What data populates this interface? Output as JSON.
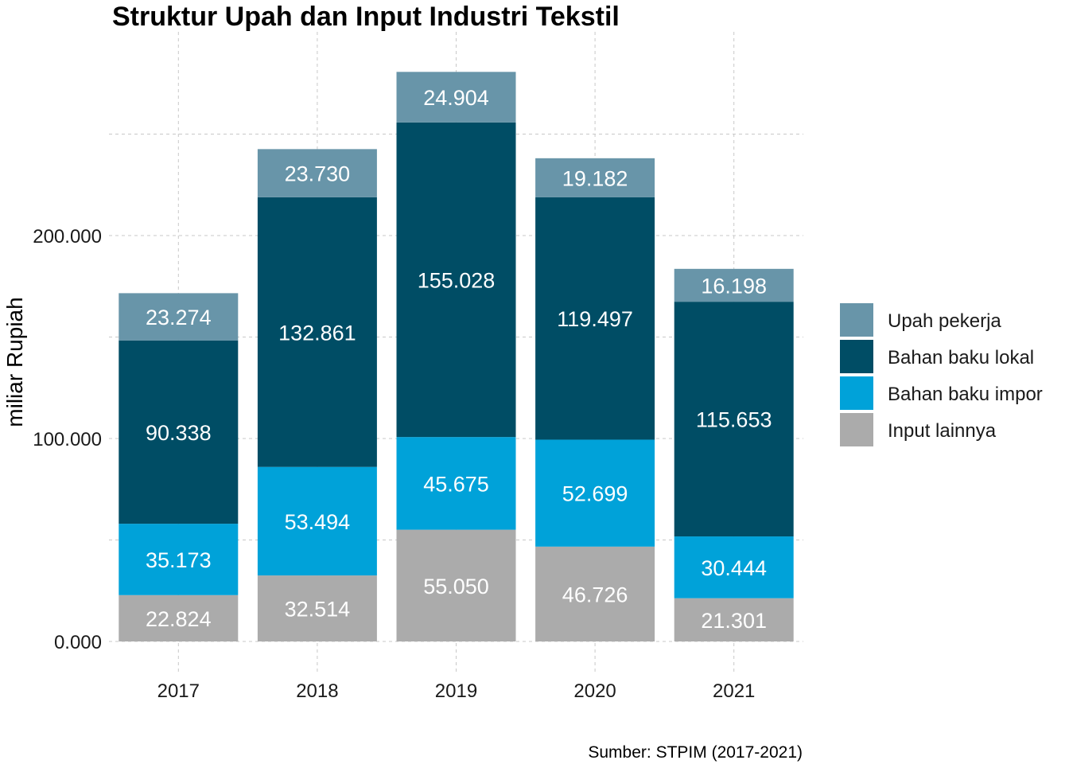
{
  "chart_data": {
    "type": "bar",
    "stacked": true,
    "title": "Struktur Upah dan Input Industri Tekstil",
    "xlabel": "",
    "ylabel": "miliar Rupiah",
    "caption": "Sumber: STPIM (2017-2021)",
    "categories": [
      "2017",
      "2018",
      "2019",
      "2020",
      "2021"
    ],
    "ylim": [
      0,
      280000
    ],
    "yticks": [
      0,
      100000,
      200000
    ],
    "ytick_labels": [
      "0.000",
      "100.000",
      "200.000"
    ],
    "grid": true,
    "legend_position": "right",
    "series": [
      {
        "name": "Input lainnya",
        "color": "#ABABAB",
        "values": [
          22824,
          32514,
          55050,
          46726,
          21301
        ],
        "labels": [
          "22.824",
          "32.514",
          "55.050",
          "46.726",
          "21.301"
        ]
      },
      {
        "name": "Bahan baku impor",
        "color": "#00A2D9",
        "values": [
          35173,
          53494,
          45675,
          52699,
          30444
        ],
        "labels": [
          "35.173",
          "53.494",
          "45.675",
          "52.699",
          "30.444"
        ]
      },
      {
        "name": "Bahan baku lokal",
        "color": "#004D65",
        "values": [
          90338,
          132861,
          155028,
          119497,
          115653
        ],
        "labels": [
          "90.338",
          "132.861",
          "155.028",
          "119.497",
          "115.653"
        ]
      },
      {
        "name": "Upah pekerja",
        "color": "#6895A9",
        "values": [
          23274,
          23730,
          24904,
          19182,
          16198
        ],
        "labels": [
          "23.274",
          "23.730",
          "24.904",
          "19.182",
          "16.198"
        ]
      }
    ],
    "legend_order": [
      "Upah pekerja",
      "Bahan baku lokal",
      "Bahan baku impor",
      "Input lainnya"
    ]
  }
}
